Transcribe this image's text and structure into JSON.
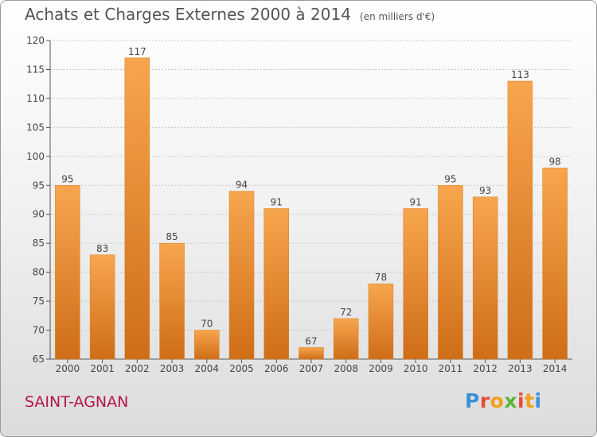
{
  "chart_data": {
    "type": "bar",
    "title": "Achats et Charges Externes 2000 à 2014",
    "subtitle": "(en milliers d'€)",
    "categories": [
      "2000",
      "2001",
      "2002",
      "2003",
      "2004",
      "2005",
      "2006",
      "2007",
      "2008",
      "2009",
      "2010",
      "2011",
      "2012",
      "2013",
      "2014"
    ],
    "values": [
      95,
      83,
      117,
      85,
      70,
      94,
      91,
      67,
      72,
      78,
      91,
      95,
      93,
      113,
      98
    ],
    "xlabel": "",
    "ylabel": "",
    "ylim": [
      65,
      120
    ],
    "yticks": [
      65,
      70,
      75,
      80,
      85,
      90,
      95,
      100,
      105,
      110,
      115,
      120
    ],
    "grid": true,
    "bar_color_top": "#f7a64e",
    "bar_color_bottom": "#cf6d18"
  },
  "location": "SAINT-AGNAN",
  "logo": {
    "letters": [
      "P",
      "r",
      "o",
      "x",
      "i",
      "t",
      "i"
    ],
    "colors": [
      "#3a8fd6",
      "#e84b3c",
      "#f2a019",
      "#5db33d",
      "#e84b3c",
      "#f2a019",
      "#3a8fd6"
    ]
  }
}
